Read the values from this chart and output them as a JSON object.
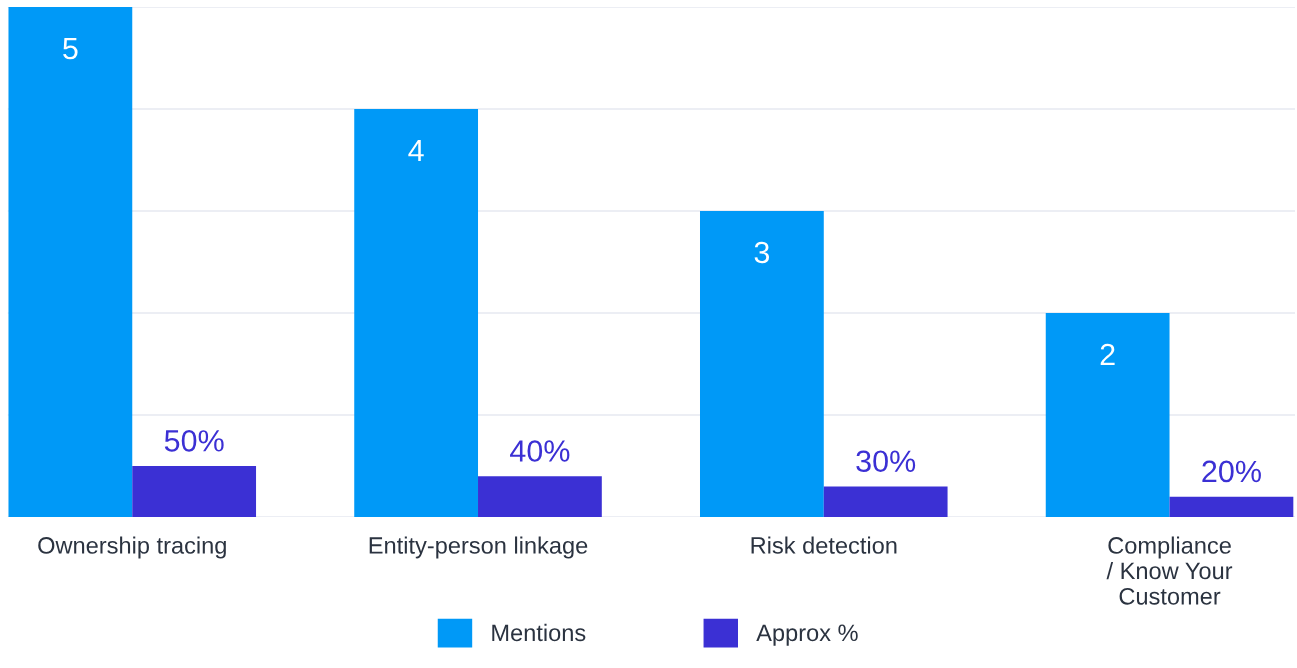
{
  "chart_data": {
    "type": "bar",
    "categories": [
      "Ownership tracing",
      "Entity-person linkage",
      "Risk detection",
      "Compliance\n/ Know Your\nCustomer"
    ],
    "series": [
      {
        "name": "Mentions",
        "color": "#0099f7",
        "values": [
          5,
          4,
          3,
          2
        ],
        "value_labels": [
          "5",
          "4",
          "3",
          "2"
        ]
      },
      {
        "name": "Approx %",
        "color": "#3b30d4",
        "values": [
          50,
          40,
          30,
          20
        ],
        "value_labels": [
          "50%",
          "40%",
          "30%",
          "20%"
        ],
        "axis": "y2"
      }
    ],
    "ylim": [
      0,
      5
    ],
    "yticks": [
      {
        "value": 0,
        "label": null
      },
      {
        "value": 1,
        "label": null
      },
      {
        "value": 2,
        "label": null
      },
      {
        "value": 3,
        "label": null
      },
      {
        "value": 4,
        "label": null
      },
      {
        "value": 5,
        "label": null
      }
    ],
    "y2lim": [
      0,
      500
    ],
    "grid": "y",
    "tick_labels": "x",
    "legend": "bottom"
  }
}
